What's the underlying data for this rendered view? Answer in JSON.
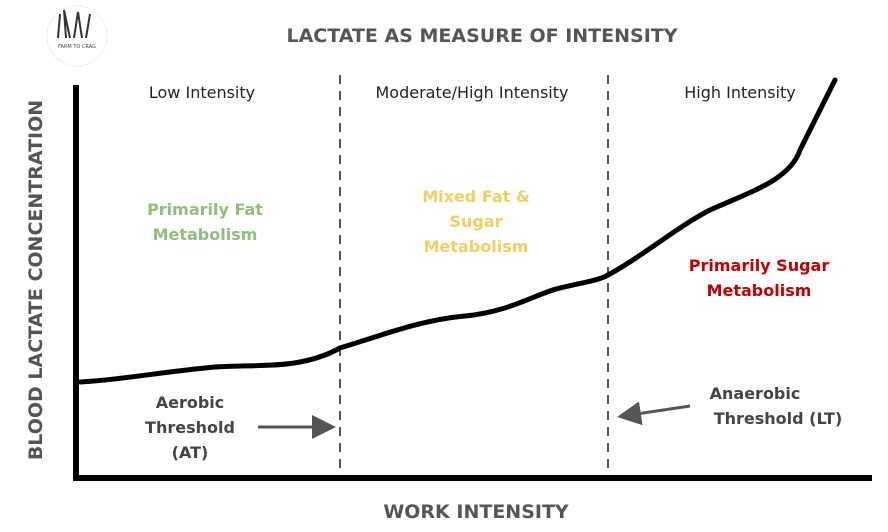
{
  "header": {
    "title": "LACTATE AS MEASURE OF INTENSITY",
    "logo": "FARM TO CRAG"
  },
  "axes": {
    "y_label": "BLOOD LACTATE CONCENTRATION",
    "x_label": "WORK INTENSITY"
  },
  "zones": [
    {
      "label": "Low Intensity",
      "metabolism": [
        "Primarily Fat",
        "Metabolism"
      ]
    },
    {
      "label": "Moderate/High Intensity",
      "metabolism": [
        "Mixed Fat &",
        "Sugar",
        "Metabolism"
      ]
    },
    {
      "label": "High Intensity",
      "metabolism": [
        "Primarily Sugar",
        "Metabolism"
      ]
    }
  ],
  "thresholds": [
    {
      "lines": [
        "Aerobic",
        "Threshold",
        "(AT)"
      ]
    },
    {
      "lines": [
        "Anaerobic",
        "Threshold (LT)"
      ]
    }
  ]
}
